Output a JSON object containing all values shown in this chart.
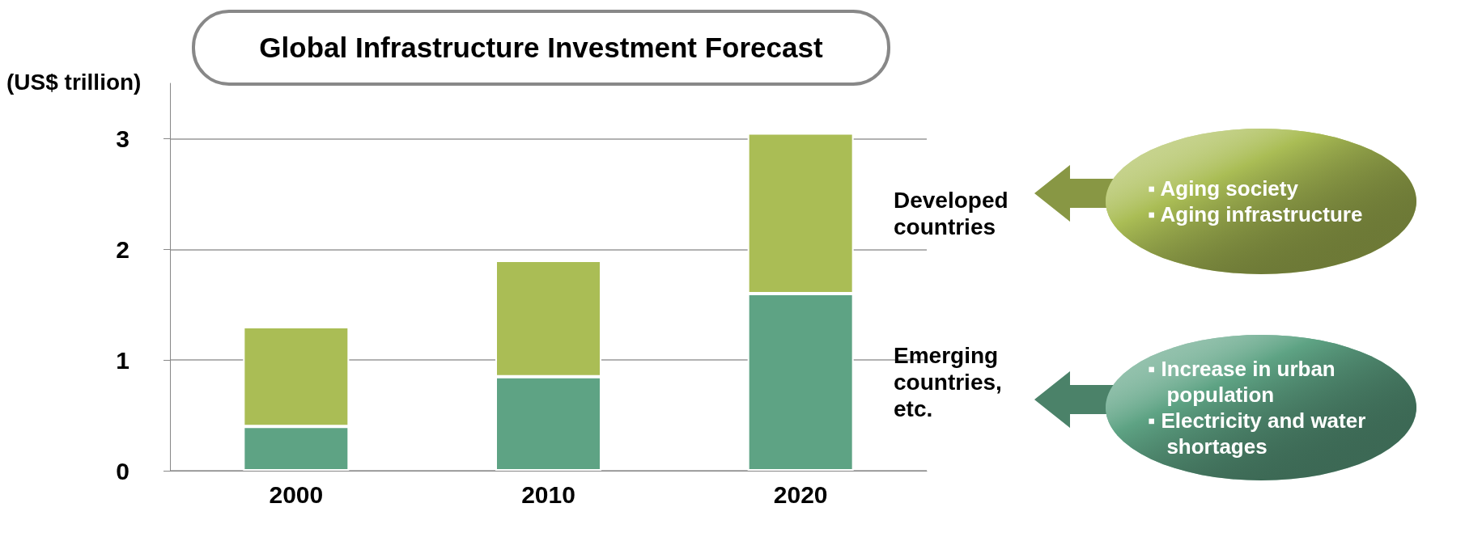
{
  "chart_data": {
    "type": "bar",
    "title": "Global Infrastructure Investment Forecast",
    "ylabel": "(US$ trillion)",
    "categories": [
      "2000",
      "2010",
      "2020"
    ],
    "series": [
      {
        "name": "Emerging countries, etc.",
        "color": "#5ea384",
        "values": [
          0.4,
          0.85,
          1.6
        ]
      },
      {
        "name": "Developed countries",
        "color": "#aabd55",
        "values": [
          0.9,
          1.05,
          1.45
        ]
      }
    ],
    "stacked": true,
    "ylim": [
      0,
      3.5
    ],
    "yticks": [
      0,
      1,
      2,
      3
    ],
    "grid": "y",
    "annotations": [
      "▪ Aging society",
      "▪ Aging infrastructure",
      "▪ Increase in urban population",
      "▪ Electricity and water shortages"
    ]
  }
}
